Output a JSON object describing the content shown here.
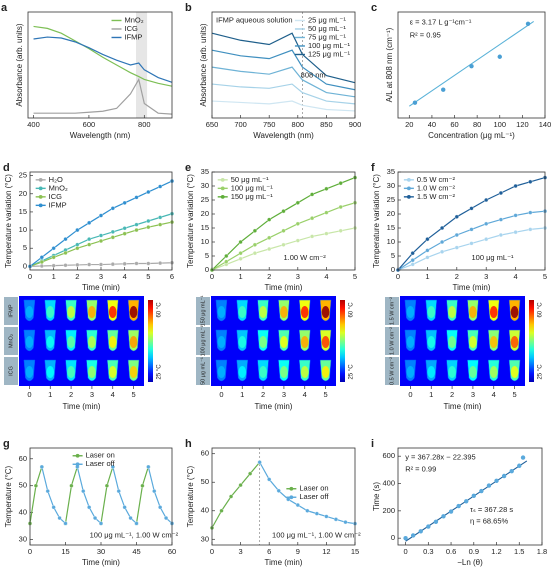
{
  "chart_data": [
    {
      "type": "line",
      "label": "a",
      "xlabel": "Wavelength (nm)",
      "ylabel": "Absorbance (arb. units)",
      "x": [
        400,
        450,
        500,
        550,
        600,
        650,
        700,
        750,
        780,
        800,
        850,
        900
      ],
      "series": [
        {
          "name": "MnO₂",
          "color": "#7dbf55",
          "values": [
            0.95,
            0.93,
            0.88,
            0.8,
            0.72,
            0.63,
            0.55,
            0.47,
            0.43,
            0.4,
            0.36,
            0.33
          ]
        },
        {
          "name": "ICG",
          "color": "#a0a0a0",
          "values": [
            0.05,
            0.05,
            0.05,
            0.05,
            0.06,
            0.07,
            0.1,
            0.25,
            0.4,
            0.15,
            0.05,
            0.04
          ]
        },
        {
          "name": "IFMP",
          "color": "#2e75b6",
          "values": [
            0.82,
            0.84,
            0.83,
            0.79,
            0.73,
            0.66,
            0.6,
            0.55,
            0.57,
            0.5,
            0.42,
            0.37
          ]
        }
      ],
      "xlim": [
        380,
        900
      ],
      "ylim": [
        0,
        1.1
      ],
      "xticks": [
        400,
        600,
        800
      ],
      "xspan": [
        770,
        810
      ],
      "legend": "upper right",
      "markers": false
    },
    {
      "type": "line",
      "label": "b",
      "xlabel": "Wavelength (nm)",
      "ylabel": "Absorbance (arb. units)",
      "legend_title": "IFMP aqueous solution",
      "x": [
        650,
        700,
        750,
        790,
        808,
        850,
        900
      ],
      "series": [
        {
          "name": "25  μg mL⁻¹",
          "color": "#cfe6f2",
          "values": [
            0.12,
            0.11,
            0.1,
            0.12,
            0.09,
            0.06,
            0.05
          ]
        },
        {
          "name": "50  μg mL⁻¹",
          "color": "#a6d2e8",
          "values": [
            0.24,
            0.22,
            0.21,
            0.24,
            0.18,
            0.12,
            0.1
          ]
        },
        {
          "name": "75  μg mL⁻¹",
          "color": "#6fb3d6",
          "values": [
            0.36,
            0.33,
            0.31,
            0.36,
            0.27,
            0.18,
            0.15
          ]
        },
        {
          "name": "100 μg mL⁻¹",
          "color": "#3f8fbf",
          "values": [
            0.48,
            0.44,
            0.42,
            0.48,
            0.36,
            0.24,
            0.2
          ]
        },
        {
          "name": "125 μg mL⁻¹",
          "color": "#1f5f8b",
          "values": [
            0.6,
            0.55,
            0.52,
            0.6,
            0.45,
            0.3,
            0.25
          ]
        }
      ],
      "xlim": [
        650,
        900
      ],
      "ylim": [
        0,
        0.75
      ],
      "xticks": [
        650,
        700,
        750,
        800,
        850,
        900
      ],
      "vline": 808,
      "annotations": [
        "808 nm"
      ],
      "legend": "upper right",
      "markers": false
    },
    {
      "type": "scatter",
      "label": "c",
      "xlabel": "Concentration (μg mL⁻¹)",
      "ylabel": "A/L at 808 nm (cm⁻¹)",
      "x": [
        25,
        50,
        75,
        100,
        125
      ],
      "values": [
        0.065,
        0.12,
        0.22,
        0.26,
        0.4
      ],
      "color": "#4a9fd4",
      "fit_x": [
        20,
        130
      ],
      "fit_values": [
        0.05,
        0.41
      ],
      "fit_color": "#5ab2d8",
      "xlim": [
        10,
        140
      ],
      "ylim": [
        0,
        0.45
      ],
      "xticks": [
        20,
        40,
        60,
        80,
        100,
        120,
        140
      ],
      "annotations": [
        "ε = 3.17 L g⁻¹cm⁻¹",
        "R² = 0.95"
      ]
    },
    {
      "type": "line",
      "label": "d",
      "xlabel": "Time (min)",
      "ylabel": "Temperature variation (°C)",
      "x": [
        0,
        0.5,
        1,
        1.5,
        2,
        2.5,
        3,
        3.5,
        4,
        4.5,
        5,
        5.5,
        6
      ],
      "series": [
        {
          "name": "H₂O",
          "color": "#aaaaaa",
          "values": [
            0,
            0.1,
            0.2,
            0.3,
            0.4,
            0.5,
            0.5,
            0.6,
            0.7,
            0.8,
            0.8,
            0.9,
            1.0
          ]
        },
        {
          "name": "MnO₂",
          "color": "#48b8b5",
          "values": [
            0,
            1.5,
            3,
            4.5,
            6,
            7.5,
            8.5,
            9.5,
            10.5,
            11.5,
            12.5,
            13.5,
            14.5
          ]
        },
        {
          "name": "ICG",
          "color": "#8cc152",
          "values": [
            0,
            1.2,
            2.5,
            3.7,
            5,
            6,
            7,
            8,
            9,
            10,
            10.8,
            11.5,
            12.2
          ]
        },
        {
          "name": "IFMP",
          "color": "#2f8fd0",
          "values": [
            0,
            2.5,
            5,
            7.5,
            10,
            12,
            14,
            16,
            17.5,
            19,
            20.5,
            22,
            23.5
          ]
        }
      ],
      "xlim": [
        0,
        6
      ],
      "ylim": [
        -1,
        26
      ],
      "xticks": [
        0,
        1,
        2,
        3,
        4,
        5,
        6
      ],
      "yticks": [
        0,
        5,
        10,
        15,
        20,
        25
      ],
      "legend": "upper left",
      "markers": true
    },
    {
      "type": "line",
      "label": "e",
      "xlabel": "Time (min)",
      "ylabel": "Temperature variation (°C)",
      "x": [
        0,
        0.5,
        1,
        1.5,
        2,
        2.5,
        3,
        3.5,
        4,
        4.5,
        5
      ],
      "series": [
        {
          "name": "50  μg mL⁻¹",
          "color": "#c8e6a8",
          "values": [
            0,
            2,
            4,
            6,
            7.5,
            9,
            10.5,
            12,
            13,
            14,
            15
          ]
        },
        {
          "name": "100 μg mL⁻¹",
          "color": "#9ad06a",
          "values": [
            0,
            3,
            6,
            9,
            11.5,
            14,
            16.5,
            18.5,
            20.5,
            22.5,
            24
          ]
        },
        {
          "name": "150 μg mL⁻¹",
          "color": "#5fae3a",
          "values": [
            0,
            5,
            10,
            14,
            18,
            21,
            24,
            27,
            29,
            31,
            33
          ]
        }
      ],
      "xlim": [
        0,
        5
      ],
      "ylim": [
        0,
        35
      ],
      "xticks": [
        0,
        1,
        2,
        3,
        4,
        5
      ],
      "yticks": [
        0,
        5,
        10,
        15,
        20,
        25,
        30,
        35
      ],
      "annotations": [
        "1.00 W cm⁻²"
      ],
      "legend": "upper left",
      "markers": true
    },
    {
      "type": "line",
      "label": "f",
      "xlabel": "Time (min)",
      "ylabel": "Temperature variation (°C)",
      "x": [
        0,
        0.5,
        1,
        1.5,
        2,
        2.5,
        3,
        3.5,
        4,
        4.5,
        5
      ],
      "series": [
        {
          "name": "0.5 W cm⁻²",
          "color": "#a8d4ee",
          "values": [
            0,
            2,
            4.5,
            6.5,
            8,
            9.5,
            11,
            12.5,
            13.5,
            14.5,
            15
          ]
        },
        {
          "name": "1.0 W cm⁻²",
          "color": "#5fa8d8",
          "values": [
            0,
            3.5,
            7,
            10,
            12.5,
            14.5,
            16.5,
            18,
            19.5,
            20.5,
            21
          ]
        },
        {
          "name": "1.5 W cm⁻²",
          "color": "#1f5f99",
          "values": [
            0,
            6,
            11,
            15,
            19,
            22,
            25,
            27.5,
            30,
            31.5,
            33
          ]
        }
      ],
      "xlim": [
        0,
        5
      ],
      "ylim": [
        0,
        35
      ],
      "xticks": [
        0,
        1,
        2,
        3,
        4,
        5
      ],
      "yticks": [
        0,
        5,
        10,
        15,
        20,
        25,
        30,
        35
      ],
      "annotations": [
        "100 μg mL⁻¹"
      ],
      "legend": "upper left",
      "markers": true
    },
    {
      "type": "line",
      "label": "g",
      "xlabel": "Time (min)",
      "ylabel": "Temperature (°C)",
      "x": [
        0,
        2.5,
        5,
        7.5,
        10,
        12.5,
        15,
        17.5,
        20,
        22.5,
        25,
        27.5,
        30,
        32.5,
        35,
        37.5,
        40,
        42.5,
        45,
        47.5,
        50,
        52.5,
        55,
        57.5,
        60
      ],
      "series": [
        {
          "name": "Laser on",
          "color": "#6ab04c",
          "values": [
            36,
            50,
            57,
            null,
            null,
            null,
            36,
            50,
            57,
            null,
            null,
            null,
            36,
            50,
            57,
            null,
            null,
            null,
            36,
            50,
            57,
            null,
            null,
            null,
            null
          ]
        },
        {
          "name": "Laser off",
          "color": "#5aa9dc",
          "values": [
            null,
            null,
            57,
            48,
            42,
            38,
            36,
            null,
            57,
            48,
            42,
            38,
            36,
            null,
            57,
            48,
            42,
            38,
            36,
            null,
            57,
            48,
            42,
            38,
            36
          ]
        }
      ],
      "xlim": [
        0,
        60
      ],
      "ylim": [
        28,
        64
      ],
      "xticks": [
        0,
        15,
        30,
        45,
        60
      ],
      "yticks": [
        30,
        40,
        50,
        60
      ],
      "annotations": [
        "100 μg mL⁻¹, 1.00 W cm⁻²"
      ],
      "legend": "upper center",
      "markers": true
    },
    {
      "type": "line",
      "label": "h",
      "xlabel": "Time (min)",
      "ylabel": "Temperature (°C)",
      "x": [
        0,
        1,
        2,
        3,
        4,
        5,
        6,
        7,
        8,
        9,
        10,
        11,
        12,
        13,
        14,
        15
      ],
      "series": [
        {
          "name": "Laser on",
          "color": "#6ab04c",
          "values": [
            34,
            40,
            45,
            49,
            53,
            57,
            null,
            null,
            null,
            null,
            null,
            null,
            null,
            null,
            null,
            null
          ]
        },
        {
          "name": "Laser off",
          "color": "#5aa9dc",
          "values": [
            null,
            null,
            null,
            null,
            null,
            57,
            51,
            47,
            44,
            42,
            40,
            39,
            38,
            37,
            36,
            35.5
          ]
        }
      ],
      "xlim": [
        0,
        15
      ],
      "ylim": [
        28,
        62
      ],
      "xticks": [
        0,
        3,
        6,
        9,
        12,
        15
      ],
      "yticks": [
        30,
        40,
        50,
        60
      ],
      "vline": 5,
      "annotations": [
        "100 μg mL⁻¹, 1.00 W cm⁻²"
      ],
      "legend": "center right",
      "markers": true
    },
    {
      "type": "scatter",
      "label": "i",
      "xlabel": "−Ln (θ)",
      "ylabel": "Time (s)",
      "x": [
        0,
        0.1,
        0.2,
        0.3,
        0.4,
        0.5,
        0.6,
        0.7,
        0.8,
        0.9,
        1.0,
        1.1,
        1.2,
        1.3,
        1.4,
        1.5,
        1.55
      ],
      "values": [
        0,
        20,
        50,
        85,
        120,
        160,
        195,
        235,
        270,
        310,
        345,
        385,
        420,
        455,
        490,
        530,
        590
      ],
      "color": "#5aa9dc",
      "fit_x": [
        0,
        1.6
      ],
      "fit_values": [
        -22.4,
        565.3
      ],
      "fit_color": "#1f5f99",
      "xlim": [
        -0.1,
        1.8
      ],
      "ylim": [
        -50,
        660
      ],
      "xticks": [
        0,
        0.3,
        0.6,
        0.9,
        1.2,
        1.5,
        1.8
      ],
      "yticks": [
        0,
        200,
        400,
        600
      ],
      "annotations": [
        "y = 367.28x − 22.395",
        "R² = 0.99",
        "τₛ = 367.28 s",
        "η = 68.65%"
      ]
    }
  ],
  "thermal_images": [
    {
      "rows": [
        "IFMP",
        "MnO₂",
        "ICG"
      ],
      "columns": [
        0,
        1,
        2,
        3,
        4,
        5
      ],
      "colorbar": [
        "60 °C",
        "25 °C"
      ],
      "xlabel": "Time (min)"
    },
    {
      "rows": [
        "150 μg mL⁻¹",
        "100 μg mL⁻¹",
        "50 μg mL⁻¹"
      ],
      "columns": [
        0,
        1,
        2,
        3,
        4,
        5
      ],
      "colorbar": [
        "60 °C",
        "25 °C"
      ],
      "xlabel": "Time (min)"
    },
    {
      "rows": [
        "1.5 W cm⁻²",
        "1.0 W cm⁻²",
        "0.5 W cm⁻²"
      ],
      "columns": [
        0,
        1,
        2,
        3,
        4,
        5
      ],
      "colorbar": [
        "60 °C",
        "25 °C"
      ],
      "xlabel": "Time (min)"
    }
  ]
}
